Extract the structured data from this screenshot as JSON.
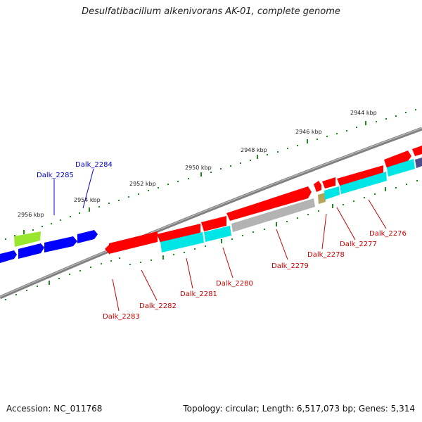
{
  "title": "Desulfatibacillum alkenivorans AK-01, complete genome",
  "footer": {
    "accession": "Accession: NC_011768",
    "summary": "Topology: circular; Length: 6,517,073 bp; Genes: 5,314"
  },
  "colors": {
    "backbone": "#808080",
    "ticks": "#1f8a1f",
    "upper_label": "#0000cc",
    "lower_label": "#cc0000",
    "cds_red": "#ff0000",
    "cds_cyan": "#00e5e5",
    "cds_grey": "#b3b3b3",
    "cds_blue": "#0000ff",
    "cds_lime": "#99e62e",
    "cds_khaki": "#b3a45c",
    "cds_slate": "#4d4d8c"
  },
  "kbp_labels": [
    "2944 kbp",
    "2946 kbp",
    "2948 kbp",
    "2950 kbp",
    "2952 kbp",
    "2954 kbp",
    "2956 kbp"
  ],
  "upper_gene_labels": [
    "Dalk_2284",
    "Dalk_2285"
  ],
  "lower_gene_labels": [
    "Dalk_2276",
    "Dalk_2277",
    "Dalk_2278",
    "Dalk_2279",
    "Dalk_2280",
    "Dalk_2281",
    "Dalk_2282",
    "Dalk_2283"
  ]
}
